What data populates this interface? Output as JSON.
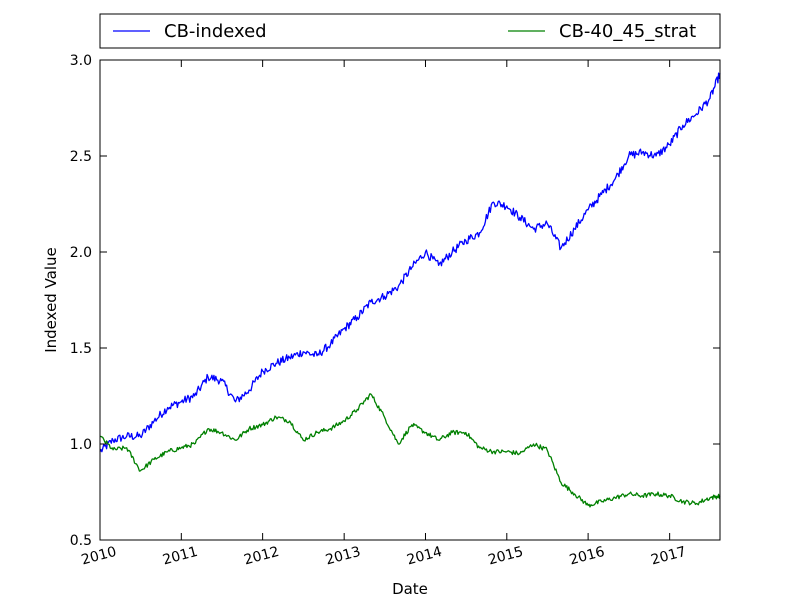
{
  "chart_data": {
    "type": "line",
    "title": "",
    "xlabel": "Date",
    "ylabel": "Indexed Value",
    "xlim": [
      "2010-01-01",
      "2017-08-15"
    ],
    "ylim": [
      0.5,
      3.0
    ],
    "x_ticks": [
      "2010",
      "2011",
      "2012",
      "2013",
      "2014",
      "2015",
      "2016",
      "2017"
    ],
    "y_ticks": [
      "0.5",
      "1.0",
      "1.5",
      "2.0",
      "2.5",
      "3.0"
    ],
    "grid": false,
    "legend_position": "top-outside",
    "x": [
      "2010-01-01",
      "2010-03-01",
      "2010-05-01",
      "2010-07-01",
      "2010-09-01",
      "2010-11-01",
      "2011-01-01",
      "2011-03-01",
      "2011-05-01",
      "2011-07-01",
      "2011-09-01",
      "2011-11-01",
      "2012-01-01",
      "2012-03-01",
      "2012-05-01",
      "2012-07-01",
      "2012-09-01",
      "2012-11-01",
      "2013-01-01",
      "2013-03-01",
      "2013-05-01",
      "2013-07-01",
      "2013-09-01",
      "2013-11-01",
      "2014-01-01",
      "2014-03-01",
      "2014-05-01",
      "2014-07-01",
      "2014-09-01",
      "2014-11-01",
      "2015-01-01",
      "2015-03-01",
      "2015-05-01",
      "2015-07-01",
      "2015-09-01",
      "2015-11-01",
      "2016-01-01",
      "2016-03-01",
      "2016-05-01",
      "2016-07-01",
      "2016-09-01",
      "2016-11-01",
      "2017-01-01",
      "2017-03-01",
      "2017-05-01",
      "2017-07-01",
      "2017-08-15"
    ],
    "series": [
      {
        "name": "CB-indexed",
        "color": "#0000ff",
        "values": [
          0.96,
          1.02,
          1.04,
          1.04,
          1.12,
          1.19,
          1.22,
          1.25,
          1.35,
          1.33,
          1.22,
          1.28,
          1.38,
          1.42,
          1.45,
          1.48,
          1.46,
          1.52,
          1.6,
          1.66,
          1.74,
          1.77,
          1.82,
          1.92,
          2.0,
          1.93,
          2.0,
          2.06,
          2.1,
          2.26,
          2.24,
          2.18,
          2.12,
          2.15,
          2.02,
          2.12,
          2.22,
          2.3,
          2.38,
          2.5,
          2.52,
          2.5,
          2.56,
          2.66,
          2.72,
          2.8,
          2.93
        ]
      },
      {
        "name": "CB-40_45_strat",
        "color": "#008000",
        "values": [
          1.04,
          0.97,
          0.98,
          0.86,
          0.92,
          0.96,
          0.98,
          1.0,
          1.08,
          1.06,
          1.02,
          1.08,
          1.1,
          1.14,
          1.12,
          1.02,
          1.06,
          1.08,
          1.12,
          1.18,
          1.26,
          1.14,
          1.0,
          1.1,
          1.06,
          1.02,
          1.06,
          1.06,
          0.98,
          0.96,
          0.96,
          0.95,
          1.0,
          0.97,
          0.8,
          0.74,
          0.68,
          0.7,
          0.72,
          0.74,
          0.73,
          0.74,
          0.73,
          0.7,
          0.69,
          0.72,
          0.73
        ]
      }
    ]
  }
}
